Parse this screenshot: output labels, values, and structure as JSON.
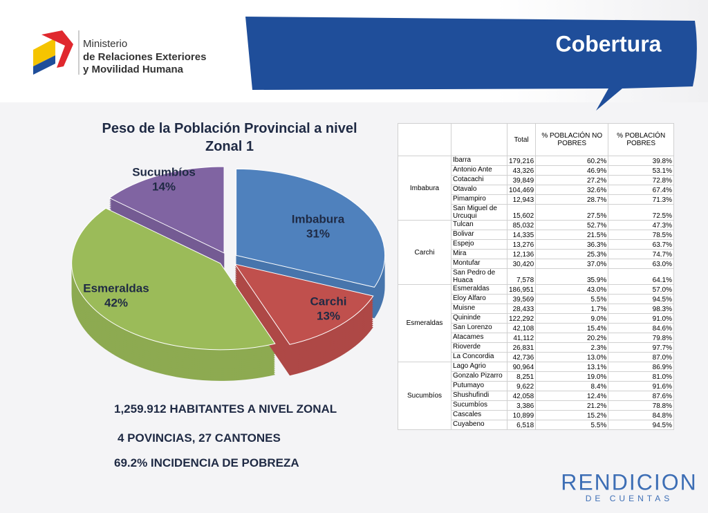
{
  "header": {
    "title": "Cobertura",
    "logo_lines": [
      "Ministerio",
      "de Relaciones Exteriores",
      "y Movilidad Humana"
    ]
  },
  "chart_data": {
    "type": "pie",
    "title": "Peso de la Población Provincial a nivel Zonal 1",
    "categories": [
      "Imbabura",
      "Carchi",
      "Esmeraldas",
      "Sucumbíos"
    ],
    "values": [
      31,
      13,
      42,
      14
    ],
    "value_labels": [
      "31%",
      "13%",
      "42%",
      "14%"
    ],
    "colors": [
      "#4f81bd",
      "#c0504d",
      "#9bbb59",
      "#8064a2"
    ]
  },
  "stats": [
    "1,259.912 HABITANTES A NIVEL ZONAL",
    "4 POVINCIAS, 27 CANTONES",
    "69.2% INCIDENCIA DE POBREZA"
  ],
  "table": {
    "columns": [
      "Total",
      "% POBLACIÓN NO POBRES",
      "% POBLACIÓN POBRES"
    ],
    "groups": [
      {
        "province": "Imbabura",
        "rows": [
          [
            "Ibarra",
            "179,216",
            "60.2%",
            "39.8%"
          ],
          [
            "Antonio Ante",
            "43,326",
            "46.9%",
            "53.1%"
          ],
          [
            "Cotacachi",
            "39,849",
            "27.2%",
            "72.8%"
          ],
          [
            "Otavalo",
            "104,469",
            "32.6%",
            "67.4%"
          ],
          [
            "Pimampiro",
            "12,943",
            "28.7%",
            "71.3%"
          ],
          [
            "San Miguel de Urcuqui",
            "15,602",
            "27.5%",
            "72.5%"
          ]
        ]
      },
      {
        "province": "Carchi",
        "rows": [
          [
            "Tulcan",
            "85,032",
            "52.7%",
            "47.3%"
          ],
          [
            "Bolivar",
            "14,335",
            "21.5%",
            "78.5%"
          ],
          [
            "Espejo",
            "13,276",
            "36.3%",
            "63.7%"
          ],
          [
            "Mira",
            "12,136",
            "25.3%",
            "74.7%"
          ],
          [
            "Montufar",
            "30,420",
            "37.0%",
            "63.0%"
          ],
          [
            "San Pedro de Huaca",
            "7,578",
            "35.9%",
            "64.1%"
          ]
        ]
      },
      {
        "province": "Esmeraldas",
        "rows": [
          [
            "Esmeraldas",
            "186,951",
            "43.0%",
            "57.0%"
          ],
          [
            "Eloy Alfaro",
            "39,569",
            "5.5%",
            "94.5%"
          ],
          [
            "Muisne",
            "28,433",
            "1.7%",
            "98.3%"
          ],
          [
            "Quininde",
            "122,292",
            "9.0%",
            "91.0%"
          ],
          [
            "San Lorenzo",
            "42,108",
            "15.4%",
            "84.6%"
          ],
          [
            "Atacames",
            "41,112",
            "20.2%",
            "79.8%"
          ],
          [
            "Rioverde",
            "26,831",
            "2.3%",
            "97.7%"
          ],
          [
            "La Concordia",
            "42,736",
            "13.0%",
            "87.0%"
          ]
        ]
      },
      {
        "province": "Sucumbíos",
        "rows": [
          [
            "Lago Agrio",
            "90,964",
            "13.1%",
            "86.9%"
          ],
          [
            "Gonzalo Pizarro",
            "8,251",
            "19.0%",
            "81.0%"
          ],
          [
            "Putumayo",
            "9,622",
            "8.4%",
            "91.6%"
          ],
          [
            "Shushufindi",
            "42,058",
            "12.4%",
            "87.6%"
          ],
          [
            "Sucumbíos",
            "3,386",
            "21.2%",
            "78.8%"
          ],
          [
            "Cascales",
            "10,899",
            "15.2%",
            "84.8%"
          ],
          [
            "Cuyabeno",
            "6,518",
            "5.5%",
            "94.5%"
          ]
        ]
      }
    ]
  },
  "footer": {
    "brand": "RENDICION",
    "brand_sub": "DE CUENTAS"
  }
}
